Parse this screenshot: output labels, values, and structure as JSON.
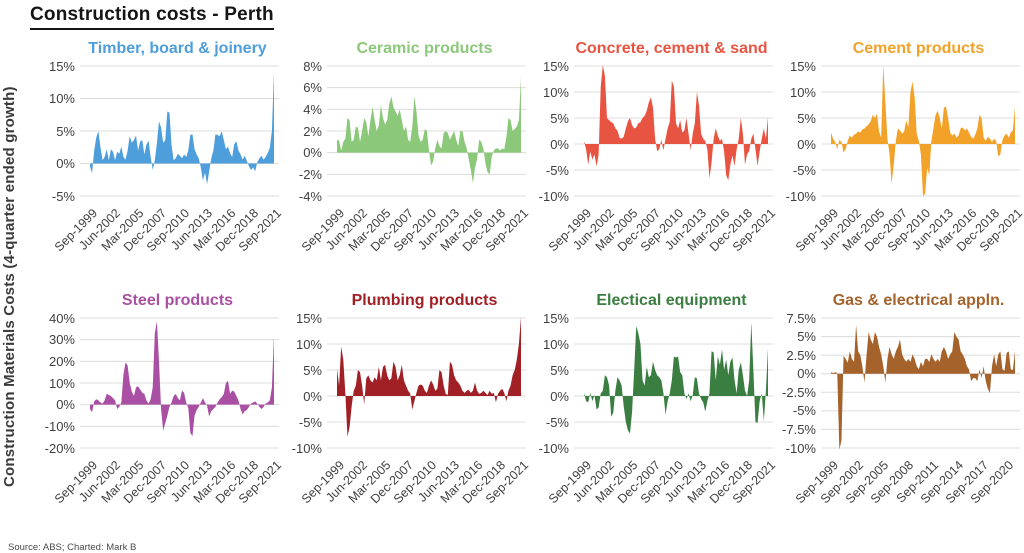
{
  "page": {
    "title": "Construction costs - Perth",
    "y_axis_label": "Construction Materials Costs (4-quarter ended growth)",
    "source_note": "Source: ABS; Charted: Mark B"
  },
  "chart_data": [
    {
      "key": "timber-board-joinery",
      "type": "area",
      "title": "Timber, board & joinery",
      "color": "#4D9EDB",
      "frequency": "quarterly",
      "x_range": "Sep-1999 to Sep-2021",
      "yticks": [
        15,
        10,
        5,
        0,
        -5
      ],
      "ytick_labels": [
        "15%",
        "10%",
        "5%",
        "0%",
        "-5%"
      ],
      "x_tick_labels": [
        "Sep-1999",
        "Jun-2002",
        "Mar-2005",
        "Dec-2007",
        "Sep-2010",
        "Jun-2013",
        "Mar-2016",
        "Dec-2018",
        "Sep-2021"
      ],
      "x_tick_quarters": [
        0,
        11,
        22,
        33,
        44,
        55,
        66,
        77,
        88
      ],
      "values": [
        -0.5,
        -1.5,
        2.0,
        4.0,
        5.0,
        2.5,
        0.5,
        1.0,
        2.2,
        0.5,
        2.2,
        1.8,
        0.5,
        1.8,
        1.5,
        2.6,
        1.0,
        0.6,
        2.0,
        4.2,
        3.2,
        3.6,
        4.3,
        2.0,
        3.4,
        3.6,
        1.4,
        2.9,
        3.5,
        1.0,
        -1.0,
        0.5,
        3.2,
        6.5,
        5.5,
        3.2,
        3.6,
        8.0,
        7.8,
        2.8,
        0.5,
        0.8,
        1.5,
        1.2,
        0.8,
        1.4,
        1.0,
        2.0,
        4.4,
        4.5,
        2.2,
        1.4,
        0.8,
        -0.6,
        -2.6,
        -1.4,
        -3.2,
        -1.2,
        0.8,
        2.0,
        4.5,
        4.4,
        4.2,
        5.0,
        3.6,
        2.2,
        2.6,
        1.6,
        1.0,
        3.0,
        3.4,
        2.0,
        1.4,
        0.6,
        1.2,
        0.4,
        -0.4,
        -1.0,
        -0.6,
        -1.2,
        0.2,
        0.8,
        1.2,
        0.6,
        1.0,
        1.6,
        2.4,
        5.0,
        14.2
      ]
    },
    {
      "key": "ceramic-products",
      "type": "area",
      "title": "Ceramic products",
      "color": "#8CC87A",
      "frequency": "quarterly",
      "x_range": "Sep-1999 to Sep-2021",
      "yticks": [
        8,
        6,
        4,
        2,
        0,
        -2,
        -4
      ],
      "ytick_labels": [
        "8%",
        "6%",
        "4%",
        "2%",
        "0%",
        "-2%",
        "-4%"
      ],
      "x_tick_labels": [
        "Sep-1999",
        "Jun-2002",
        "Mar-2005",
        "Dec-2007",
        "Sep-2010",
        "Jun-2013",
        "Mar-2016",
        "Dec-2018",
        "Sep-2021"
      ],
      "x_tick_quarters": [
        0,
        11,
        22,
        33,
        44,
        55,
        66,
        77,
        88
      ],
      "values": [
        1.2,
        1.1,
        0.2,
        1.0,
        1.3,
        3.2,
        3.0,
        1.0,
        1.2,
        2.4,
        2.3,
        1.0,
        2.0,
        3.2,
        2.8,
        1.5,
        3.0,
        4.2,
        3.0,
        2.0,
        2.5,
        4.4,
        3.2,
        2.6,
        3.0,
        4.5,
        5.2,
        4.2,
        3.8,
        3.4,
        4.0,
        3.0,
        2.0,
        2.4,
        1.2,
        1.0,
        2.4,
        5.2,
        3.8,
        1.6,
        1.0,
        1.2,
        2.2,
        2.0,
        0.2,
        -1.2,
        -0.8,
        0.4,
        1.2,
        0.6,
        0.4,
        1.8,
        2.0,
        1.8,
        1.2,
        1.6,
        2.0,
        1.2,
        0.6,
        2.0,
        2.0,
        1.0,
        0.4,
        -0.6,
        -1.6,
        -2.8,
        -1.4,
        -0.6,
        1.2,
        1.0,
        0.4,
        -1.0,
        -1.8,
        -2.0,
        -0.4,
        0.2,
        0.4,
        0.4,
        0.2,
        0.4,
        0.3,
        1.4,
        3.2,
        3.0,
        2.0,
        2.2,
        2.4,
        3.0,
        7.0
      ]
    },
    {
      "key": "concrete-cement-sand",
      "type": "area",
      "title": "Concrete, cement & sand",
      "color": "#E85442",
      "frequency": "quarterly",
      "x_range": "Sep-1999 to Sep-2021",
      "yticks": [
        15,
        10,
        5,
        0,
        -5,
        -10
      ],
      "ytick_labels": [
        "15%",
        "10%",
        "5%",
        "0%",
        "-5%",
        "-10%"
      ],
      "x_tick_labels": [
        "Sep-1999",
        "Jun-2002",
        "Mar-2005",
        "Dec-2007",
        "Sep-2010",
        "Jun-2013",
        "Mar-2016",
        "Dec-2018",
        "Sep-2021"
      ],
      "x_tick_quarters": [
        0,
        11,
        22,
        33,
        44,
        55,
        66,
        77,
        88
      ],
      "values": [
        0.5,
        -1.0,
        -4.0,
        -1.5,
        -3.0,
        -2.0,
        -4.3,
        -2.0,
        11.0,
        15.2,
        13.0,
        5.0,
        4.6,
        4.2,
        4.0,
        3.0,
        2.6,
        1.2,
        1.0,
        1.4,
        3.0,
        4.4,
        5.0,
        3.6,
        3.0,
        3.2,
        4.0,
        4.2,
        5.0,
        5.4,
        6.4,
        8.0,
        9.0,
        7.0,
        1.0,
        -1.4,
        -1.0,
        0.8,
        -1.2,
        1.0,
        3.0,
        4.2,
        12.2,
        11.0,
        4.0,
        3.0,
        4.6,
        2.2,
        2.6,
        5.0,
        2.0,
        -1.2,
        2.0,
        4.0,
        10.0,
        7.4,
        2.0,
        1.0,
        0.6,
        -1.0,
        -6.6,
        -3.6,
        1.0,
        3.0,
        1.6,
        0.6,
        1.0,
        -1.4,
        -6.0,
        -7.0,
        -4.0,
        -2.2,
        -4.2,
        -1.0,
        1.0,
        5.0,
        2.0,
        -4.0,
        -2.0,
        -1.4,
        1.0,
        2.0,
        -1.0,
        -4.2,
        -1.5,
        1.0,
        3.0,
        1.0,
        5.2
      ]
    },
    {
      "key": "cement-products",
      "type": "area",
      "title": "Cement products",
      "color": "#F2A129",
      "frequency": "quarterly",
      "x_range": "Sep-1999 to Sep-2021",
      "yticks": [
        15,
        10,
        5,
        0,
        -5,
        -10
      ],
      "ytick_labels": [
        "15%",
        "10%",
        "5%",
        "0%",
        "-5%",
        "-10%"
      ],
      "x_tick_labels": [
        "Sep-1999",
        "Jun-2002",
        "Mar-2005",
        "Dec-2007",
        "Sep-2010",
        "Jun-2013",
        "Mar-2016",
        "Dec-2018",
        "Sep-2021"
      ],
      "x_tick_quarters": [
        0,
        11,
        22,
        33,
        44,
        55,
        66,
        77,
        88
      ],
      "values": [
        2.2,
        1.0,
        0.4,
        -1.0,
        0.8,
        0.4,
        -1.6,
        -1.0,
        0.6,
        1.6,
        1.2,
        1.8,
        2.0,
        2.4,
        2.2,
        2.8,
        3.0,
        3.4,
        3.8,
        4.4,
        5.6,
        5.0,
        5.8,
        2.4,
        1.2,
        15.2,
        8.0,
        1.0,
        -2.0,
        -7.6,
        -4.0,
        0.6,
        3.0,
        2.6,
        2.0,
        2.4,
        4.6,
        3.2,
        10.0,
        12.0,
        9.0,
        2.0,
        0.6,
        -2.0,
        -10.0,
        -9.6,
        -4.6,
        -6.0,
        0.6,
        3.0,
        5.6,
        6.4,
        5.0,
        3.0,
        7.0,
        7.2,
        5.0,
        2.2,
        1.6,
        2.0,
        1.2,
        1.6,
        3.0,
        3.2,
        2.6,
        3.0,
        2.2,
        1.4,
        1.0,
        1.8,
        3.0,
        5.6,
        5.0,
        1.2,
        0.6,
        1.4,
        1.0,
        0.4,
        1.0,
        0.6,
        -2.4,
        -2.0,
        0.8,
        1.6,
        2.0,
        1.2,
        2.2,
        2.6,
        7.2
      ]
    },
    {
      "key": "steel-products",
      "type": "area",
      "title": "Steel products",
      "color": "#A94FA4",
      "frequency": "quarterly",
      "x_range": "Sep-1999 to Sep-2021",
      "yticks": [
        40,
        30,
        20,
        10,
        0,
        -10,
        -20
      ],
      "ytick_labels": [
        "40%",
        "30%",
        "20%",
        "10%",
        "0%",
        "-10%",
        "-20%"
      ],
      "x_tick_labels": [
        "Sep-1999",
        "Jun-2002",
        "Mar-2005",
        "Dec-2007",
        "Sep-2010",
        "Jun-2013",
        "Mar-2016",
        "Dec-2018",
        "Sep-2021"
      ],
      "x_tick_quarters": [
        0,
        11,
        22,
        33,
        44,
        55,
        66,
        77,
        88
      ],
      "values": [
        -2.0,
        -3.5,
        1.5,
        2.5,
        2.0,
        1.0,
        0.5,
        2.0,
        5.0,
        4.5,
        4.0,
        3.0,
        2.0,
        -2.0,
        -1.0,
        1.0,
        14.0,
        19.5,
        18.0,
        10.0,
        6.0,
        4.0,
        8.0,
        8.5,
        7.0,
        5.5,
        5.0,
        2.0,
        0.5,
        2.5,
        8.0,
        33.0,
        38.5,
        20.0,
        -2.0,
        -12.0,
        -8.5,
        -5.0,
        -1.0,
        1.0,
        4.0,
        5.0,
        3.0,
        2.0,
        6.5,
        5.5,
        1.0,
        -1.5,
        -13.0,
        -14.5,
        -5.0,
        -2.5,
        -1.0,
        1.0,
        3.0,
        1.0,
        -0.5,
        -5.5,
        -3.0,
        -2.0,
        -1.0,
        1.0,
        2.5,
        3.5,
        5.0,
        10.0,
        11.0,
        5.0,
        6.5,
        6.0,
        4.0,
        2.0,
        -2.0,
        -4.5,
        -3.0,
        -2.5,
        -1.0,
        0.5,
        1.0,
        1.5,
        0.5,
        -1.0,
        -2.0,
        -1.0,
        0.5,
        1.0,
        2.0,
        8.0,
        32.0
      ]
    },
    {
      "key": "plumbing-products",
      "type": "area",
      "title": "Plumbing products",
      "color": "#A02026",
      "frequency": "quarterly",
      "x_range": "Sep-1999 to Sep-2021",
      "yticks": [
        15,
        10,
        5,
        0,
        -5,
        -10
      ],
      "ytick_labels": [
        "15%",
        "10%",
        "5%",
        "0%",
        "-5%",
        "-10%"
      ],
      "x_tick_labels": [
        "Sep-1999",
        "Jun-2002",
        "Mar-2005",
        "Dec-2007",
        "Sep-2010",
        "Jun-2013",
        "Mar-2016",
        "Dec-2018",
        "Sep-2021"
      ],
      "x_tick_quarters": [
        0,
        11,
        22,
        33,
        44,
        55,
        66,
        77,
        88
      ],
      "values": [
        5.2,
        2.0,
        9.5,
        7.0,
        0.5,
        -7.8,
        -6.0,
        -2.0,
        1.0,
        2.0,
        5.0,
        4.6,
        2.0,
        -1.6,
        3.4,
        4.0,
        3.0,
        2.6,
        3.6,
        3.0,
        5.6,
        3.0,
        5.6,
        6.0,
        4.0,
        3.0,
        3.4,
        6.6,
        5.6,
        3.0,
        4.0,
        6.0,
        3.0,
        2.0,
        1.0,
        0.5,
        -2.6,
        -1.0,
        0.6,
        2.0,
        2.2,
        2.0,
        1.0,
        0.6,
        2.0,
        3.0,
        2.2,
        1.0,
        1.4,
        5.0,
        4.6,
        2.0,
        0.4,
        0.2,
        6.6,
        6.0,
        4.0,
        3.0,
        2.6,
        2.0,
        1.0,
        0.6,
        1.0,
        1.2,
        0.6,
        1.0,
        2.6,
        1.0,
        0.4,
        0.6,
        1.0,
        0.6,
        0.2,
        1.0,
        0.4,
        0.6,
        -1.2,
        0.4,
        1.0,
        1.4,
        0.6,
        -1.0,
        1.0,
        2.0,
        4.0,
        5.0,
        7.0,
        10.0,
        15.2
      ]
    },
    {
      "key": "electrical-equipment",
      "type": "area",
      "title": "Electical equipment",
      "color": "#3A7E41",
      "frequency": "quarterly",
      "x_range": "Sep-1999 to Sep-2021",
      "yticks": [
        15,
        10,
        5,
        0,
        -5,
        -10
      ],
      "ytick_labels": [
        "15%",
        "10%",
        "5%",
        "0%",
        "-5%",
        "-10%"
      ],
      "x_tick_labels": [
        "Sep-1999",
        "Jun-2002",
        "Mar-2005",
        "Dec-2007",
        "Sep-2010",
        "Jun-2013",
        "Mar-2016",
        "Dec-2018",
        "Sep-2021"
      ],
      "x_tick_quarters": [
        0,
        11,
        22,
        33,
        44,
        55,
        66,
        77,
        88
      ],
      "values": [
        0.6,
        -1.0,
        -1.2,
        0.6,
        -1.0,
        0.2,
        -2.6,
        -2.2,
        0.5,
        1.0,
        4.0,
        3.6,
        2.0,
        -4.0,
        -3.2,
        1.0,
        3.6,
        3.0,
        2.0,
        -2.0,
        -5.0,
        -6.6,
        -7.2,
        -3.0,
        5.0,
        13.5,
        12.0,
        10.0,
        3.0,
        2.0,
        5.6,
        3.6,
        4.0,
        6.6,
        5.0,
        4.0,
        3.6,
        3.0,
        0.5,
        -3.6,
        -1.0,
        0.5,
        3.0,
        7.6,
        7.4,
        7.6,
        4.6,
        4.0,
        0.5,
        -0.6,
        0.5,
        -1.0,
        0.2,
        3.6,
        3.4,
        0.5,
        -0.6,
        -1.2,
        -3.0,
        -1.0,
        0.5,
        8.6,
        8.4,
        3.0,
        7.6,
        6.0,
        9.0,
        5.0,
        7.0,
        4.0,
        6.6,
        7.4,
        3.0,
        0.5,
        5.0,
        6.5,
        4.0,
        1.0,
        0.0,
        3.0,
        14.2,
        5.0,
        -5.0,
        -5.2,
        -1.0,
        0.5,
        -4.8,
        1.0,
        9.2
      ]
    },
    {
      "key": "gas-electrical-appliances",
      "type": "area",
      "title": "Gas & electrical appln.",
      "color": "#A5622B",
      "frequency": "quarterly",
      "x_range": "Sep-1999 to Sep-2021",
      "yticks": [
        7.5,
        5,
        2.5,
        0,
        -2.5,
        -5,
        -7.5,
        -10
      ],
      "ytick_labels": [
        "7.5%",
        "5%",
        "2.5%",
        "0%",
        "-2.5%",
        "-5%",
        "-7.5%",
        "-10%"
      ],
      "x_tick_labels": [
        "Sep-1999",
        "Sep-2002",
        "Sep-2005",
        "Sep-2008",
        "Sep-2011",
        "Sep-2014",
        "Sep-2017",
        "Sep-2020"
      ],
      "x_tick_quarters": [
        0,
        12,
        24,
        36,
        48,
        60,
        72,
        84
      ],
      "values": [
        0.2,
        0.1,
        0.2,
        0.1,
        -10.2,
        -9.0,
        2.4,
        2.0,
        1.5,
        3.0,
        2.0,
        1.6,
        6.6,
        3.0,
        2.5,
        1.0,
        -1.2,
        2.5,
        5.6,
        4.6,
        4.0,
        5.6,
        5.0,
        3.6,
        2.6,
        1.0,
        -1.2,
        2.0,
        3.6,
        2.6,
        2.0,
        3.0,
        3.6,
        4.6,
        2.6,
        2.0,
        1.6,
        2.0,
        1.6,
        2.6,
        2.0,
        1.0,
        0.6,
        1.6,
        1.0,
        2.0,
        2.0,
        1.6,
        2.6,
        2.0,
        1.6,
        2.0,
        1.6,
        3.0,
        3.6,
        3.0,
        2.0,
        2.6,
        3.0,
        5.6,
        5.0,
        4.6,
        3.0,
        2.6,
        2.0,
        1.0,
        0.6,
        -1.0,
        -0.6,
        -0.6,
        -1.0,
        0.6,
        -0.6,
        1.0,
        -1.0,
        -2.0,
        -2.6,
        1.0,
        2.6,
        1.0,
        2.6,
        3.0,
        0.6,
        0.4,
        2.8,
        3.0,
        0.6,
        0.5,
        3.0
      ]
    }
  ]
}
